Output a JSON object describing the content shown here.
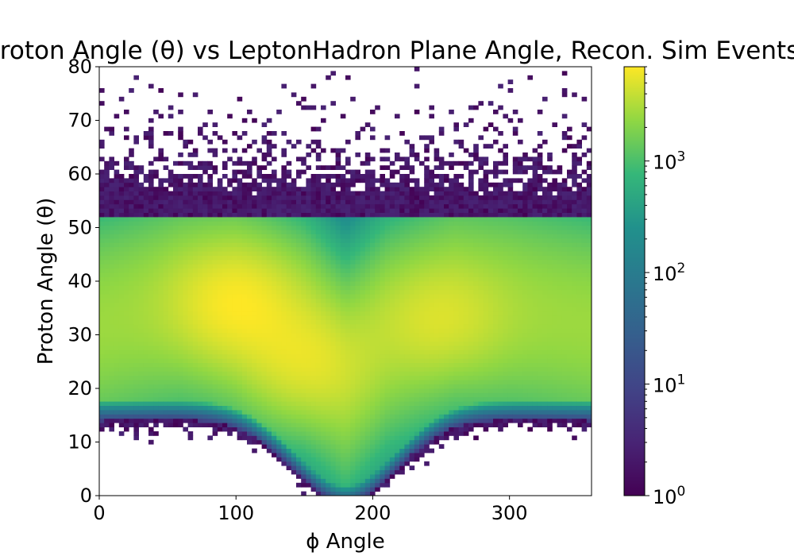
{
  "chart_data": {
    "type": "heatmap",
    "title": "Proton Angle (θ) vs LeptonHadron Plane Angle, Recon. Sim Events",
    "xlabel": "ϕ Angle",
    "ylabel": "Proton Angle (θ)",
    "xlim": [
      0,
      360
    ],
    "ylim": [
      0,
      80
    ],
    "x_ticks": [
      0,
      100,
      200,
      300
    ],
    "y_ticks": [
      0,
      10,
      20,
      30,
      40,
      50,
      60,
      70,
      80
    ],
    "bins": {
      "x": 100,
      "y": 100,
      "x_width": 3.6,
      "y_width": 0.8
    },
    "colorbar": {
      "scale": "log",
      "min": 1,
      "max": 7000,
      "colormap": "viridis",
      "ticks": [
        {
          "value": 1,
          "base": "10",
          "exp": "0"
        },
        {
          "value": 10,
          "base": "10",
          "exp": "1"
        },
        {
          "value": 100,
          "base": "10",
          "exp": "2"
        },
        {
          "value": 1000,
          "base": "10",
          "exp": "3"
        }
      ]
    },
    "distribution_features": {
      "band_center_theta_deg": [
        [
          0,
          32
        ],
        [
          60,
          36
        ],
        [
          100,
          36
        ],
        [
          150,
          30
        ],
        [
          180,
          22
        ],
        [
          210,
          30
        ],
        [
          260,
          36
        ],
        [
          300,
          35
        ],
        [
          360,
          32
        ]
      ],
      "peak_density_regions": [
        {
          "phi": 100,
          "theta": 36,
          "count": 7000
        },
        {
          "phi": 150,
          "theta": 25,
          "count": 5000
        },
        {
          "phi": 250,
          "theta": 33,
          "count": 4000
        }
      ],
      "theta_min_at_phi_180": 2,
      "sparse_tail_upper_theta": 80
    }
  }
}
